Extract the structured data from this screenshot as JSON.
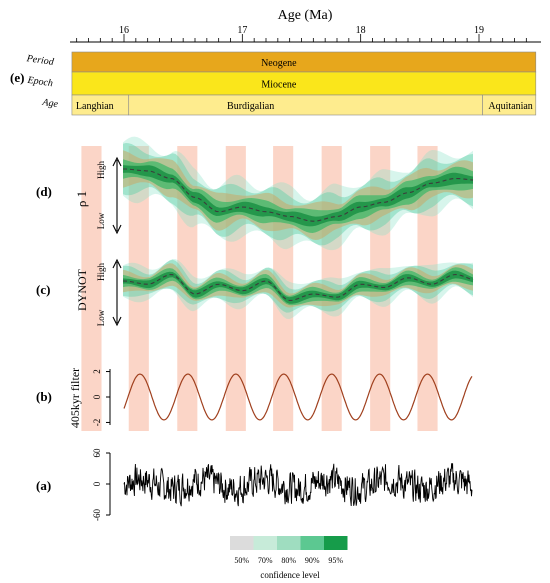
{
  "chart_data": [
    {
      "panel": "(e)",
      "type": "table",
      "title": "Age (Ma)",
      "x_ticks": [
        16,
        17,
        18,
        19
      ],
      "xlim": [
        15.56,
        19.48
      ],
      "rows": [
        {
          "label": "Period",
          "cells": [
            {
              "name": "Neogene",
              "from": 15.56,
              "to": 19.48,
              "color": "#E7A71C"
            }
          ]
        },
        {
          "label": "Epoch",
          "cells": [
            {
              "name": "Miocene",
              "from": 15.56,
              "to": 19.48,
              "color": "#FAE61B"
            }
          ]
        },
        {
          "label": "Age",
          "cells": [
            {
              "name": "Langhian",
              "from": 15.56,
              "to": 16.04,
              "color": "#FEEC8E"
            },
            {
              "name": "Burdigalian",
              "from": 16.04,
              "to": 19.03,
              "color": "#FEEC8E"
            },
            {
              "name": "Aquitanian",
              "from": 19.03,
              "to": 19.48,
              "color": "#FEEC8E"
            }
          ]
        }
      ]
    },
    {
      "panel": "(d)",
      "type": "area",
      "ylabel": "ρ 1",
      "high_label": "High",
      "low_label": "Low",
      "xlim": [
        15.56,
        19.48
      ],
      "ylim": [
        0,
        1
      ],
      "x": [
        16.0,
        16.2,
        16.4,
        16.6,
        16.8,
        17.0,
        17.2,
        17.4,
        17.6,
        17.8,
        18.0,
        18.2,
        18.4,
        18.6,
        18.8,
        19.0,
        19.2
      ],
      "median": [
        0.8,
        0.78,
        0.7,
        0.5,
        0.35,
        0.4,
        0.35,
        0.3,
        0.25,
        0.3,
        0.4,
        0.45,
        0.55,
        0.65,
        0.7,
        0.68,
        0.6
      ],
      "band_halfwidths": [
        0.05,
        0.1,
        0.16,
        0.22,
        0.28
      ]
    },
    {
      "panel": "(c)",
      "type": "area",
      "ylabel": "DYNOT",
      "high_label": "High",
      "low_label": "Low",
      "xlim": [
        15.56,
        19.48
      ],
      "ylim": [
        0,
        1
      ],
      "x": [
        16.0,
        16.2,
        16.4,
        16.6,
        16.8,
        17.0,
        17.2,
        17.4,
        17.6,
        17.8,
        18.0,
        18.2,
        18.4,
        18.6,
        18.8,
        19.0,
        19.2
      ],
      "median": [
        0.6,
        0.55,
        0.7,
        0.4,
        0.55,
        0.45,
        0.6,
        0.3,
        0.4,
        0.35,
        0.55,
        0.5,
        0.65,
        0.55,
        0.7,
        0.6,
        0.65
      ],
      "band_halfwidths": [
        0.05,
        0.09,
        0.14,
        0.19,
        0.24
      ]
    },
    {
      "panel": "(b)",
      "type": "line",
      "ylabel": "405kyr filter",
      "y_ticks": [
        2,
        0,
        -2
      ],
      "xlim": [
        15.56,
        19.48
      ],
      "ylim": [
        -2.2,
        2.2
      ],
      "amplitude": 1.8,
      "period_ma": 0.405,
      "x_start": 15.6,
      "x_end": 19.48,
      "line_color": "#A0401E",
      "highlight_color": "#F9C7B4",
      "highlight_bands": [
        [
          15.64,
          15.81
        ],
        [
          16.04,
          16.21
        ],
        [
          16.45,
          16.62
        ],
        [
          16.86,
          17.03
        ],
        [
          17.26,
          17.43
        ],
        [
          17.67,
          17.84
        ],
        [
          18.08,
          18.25
        ],
        [
          18.48,
          18.65
        ]
      ]
    },
    {
      "panel": "(a)",
      "type": "line",
      "y_ticks": [
        60,
        0,
        -60
      ],
      "ylim": [
        -60,
        60
      ],
      "xlim": [
        15.56,
        19.48
      ],
      "line_color": "#000000",
      "amplitude_range": [
        -45,
        55
      ]
    }
  ],
  "legend": {
    "title": "confidence level",
    "items": [
      {
        "label": "50%",
        "color": "#DCDCDC"
      },
      {
        "label": "70%",
        "color": "#C7EBD9"
      },
      {
        "label": "80%",
        "color": "#9FDDC0"
      },
      {
        "label": "90%",
        "color": "#5CC891"
      },
      {
        "label": "95%",
        "color": "#169C4A"
      }
    ]
  },
  "colors": {
    "band_tan": "#C8A968",
    "band_green": "#2FAE5C",
    "median_line": "#3C3C3C"
  }
}
